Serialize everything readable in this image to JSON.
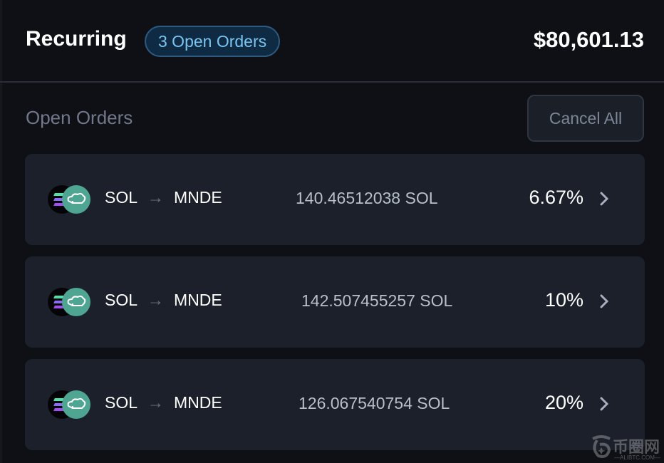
{
  "header": {
    "title": "Recurring",
    "badge": "3 Open Orders",
    "total": "$80,601.13"
  },
  "section": {
    "title": "Open Orders",
    "cancel_all": "Cancel All"
  },
  "orders": [
    {
      "from": "SOL",
      "to": "MNDE",
      "amount": "140.46512038 SOL",
      "percent": "6.67%"
    },
    {
      "from": "SOL",
      "to": "MNDE",
      "amount": "142.507455257 SOL",
      "percent": "10%"
    },
    {
      "from": "SOL",
      "to": "MNDE",
      "amount": "126.067540754 SOL",
      "percent": "20%"
    }
  ],
  "icons": {
    "arrow": "arrow-right-icon",
    "chevron": "chevron-right-icon",
    "from_token": "solana-logo",
    "to_token": "marinade-chef-hat-logo"
  },
  "colors": {
    "background": "#0e1016",
    "card": "#1b202b",
    "badge_text": "#7cc4f0",
    "badge_border": "#2e5a80",
    "mnde": "#4ea692"
  },
  "watermark": {
    "cn": "币圈网",
    "en": "—ALIBTC.COM—"
  }
}
